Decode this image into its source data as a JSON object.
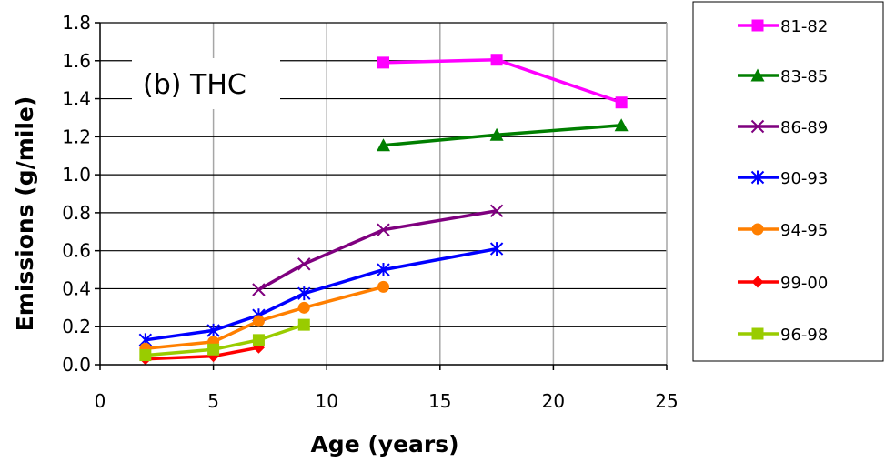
{
  "chart_data": {
    "type": "line",
    "title": "",
    "annotation": "(b)  THC",
    "xlabel": "Age (years)",
    "ylabel": "Emissions (g/mile)",
    "xlim": [
      0,
      25
    ],
    "ylim": [
      0,
      1.8
    ],
    "x_ticks": [
      0,
      5,
      10,
      15,
      20,
      25
    ],
    "y_ticks": [
      0.0,
      0.2,
      0.4,
      0.6,
      0.8,
      1.0,
      1.2,
      1.4,
      1.6,
      1.8
    ],
    "x_tick_labels": [
      "0",
      "5",
      "10",
      "15",
      "20",
      "25"
    ],
    "y_tick_labels": [
      "0.0",
      "0.2",
      "0.4",
      "0.6",
      "0.8",
      "1.0",
      "1.2",
      "1.4",
      "1.6",
      "1.8"
    ],
    "grid": "vertical and horizontal major gridlines",
    "legend_position": "right",
    "series": [
      {
        "name": "81-82",
        "color": "#ff00ff",
        "marker": "square",
        "x": [
          12.5,
          17.5,
          23
        ],
        "y": [
          1.59,
          1.605,
          1.38
        ]
      },
      {
        "name": "83-85",
        "color": "#007f00",
        "marker": "triangle",
        "x": [
          12.5,
          17.5,
          23
        ],
        "y": [
          1.155,
          1.21,
          1.26
        ]
      },
      {
        "name": "86-89",
        "color": "#7f007f",
        "marker": "x",
        "x": [
          7,
          9,
          12.5,
          17.5
        ],
        "y": [
          0.395,
          0.53,
          0.71,
          0.81
        ]
      },
      {
        "name": "90-93",
        "color": "#0000ff",
        "marker": "asterisk",
        "x": [
          2,
          5,
          7,
          9,
          12.5,
          17.5
        ],
        "y": [
          0.13,
          0.18,
          0.26,
          0.375,
          0.5,
          0.61
        ]
      },
      {
        "name": "94-95",
        "color": "#ff7f00",
        "marker": "circle",
        "x": [
          2,
          5,
          7,
          9,
          12.5
        ],
        "y": [
          0.085,
          0.12,
          0.23,
          0.3,
          0.41
        ]
      },
      {
        "name": "99-00",
        "color": "#ff0000",
        "marker": "diamond",
        "x": [
          2,
          5,
          7
        ],
        "y": [
          0.03,
          0.045,
          0.09
        ]
      },
      {
        "name": "96-98",
        "color": "#99cc00",
        "marker": "square",
        "x": [
          2,
          5,
          7,
          9
        ],
        "y": [
          0.05,
          0.08,
          0.13,
          0.21
        ]
      }
    ]
  }
}
